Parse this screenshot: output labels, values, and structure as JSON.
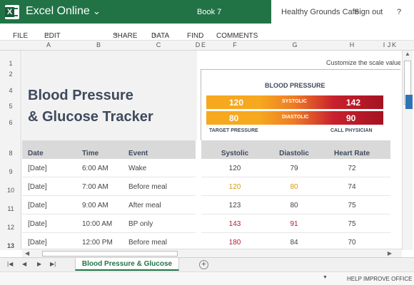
{
  "app": {
    "name": "Excel Online",
    "book": "Book 7",
    "user": "Healthy Grounds Cafe",
    "signout": "Sign out",
    "help": "?"
  },
  "menu": [
    {
      "label": "FILE",
      "caret": false
    },
    {
      "label": "EDIT WORKBOOK",
      "caret": true
    },
    {
      "label": "SHARE",
      "caret": true
    },
    {
      "label": "DATA",
      "caret": true
    },
    {
      "label": "FIND",
      "caret": false
    },
    {
      "label": "COMMENTS",
      "caret": false
    }
  ],
  "columns": [
    "A",
    "B",
    "C",
    "D",
    "E",
    "F",
    "G",
    "H",
    "I",
    "J",
    "K"
  ],
  "rows": [
    "1",
    "2",
    "4",
    "5",
    "6",
    "8",
    "9",
    "10",
    "11",
    "12",
    "13"
  ],
  "sheet": {
    "title_line1": "Blood Pressure",
    "title_line2": "& Glucose Tracker",
    "customize": "Customize the scale values",
    "bp_heading": "BLOOD PRESSURE",
    "scale": {
      "systolic_target": "120",
      "systolic_label": "SYSTOLIC",
      "systolic_call": "142",
      "diastolic_target": "80",
      "diastolic_label": "DIASTOLIC",
      "diastolic_call": "90",
      "target_label": "TARGET PRESSURE",
      "call_label": "CALL PHYSICIAN"
    },
    "headers": {
      "date": "Date",
      "time": "Time",
      "event": "Event",
      "systolic": "Systolic",
      "diastolic": "Diastolic",
      "heart_rate": "Heart Rate"
    },
    "data_rows": [
      {
        "date": "[Date]",
        "time": "6:00 AM",
        "event": "Wake",
        "systolic": "120",
        "diastolic": "79",
        "heart_rate": "72",
        "sys_color": "#444444",
        "dia_color": "#444444"
      },
      {
        "date": "[Date]",
        "time": "7:00 AM",
        "event": "Before meal",
        "systolic": "120",
        "diastolic": "80",
        "heart_rate": "74",
        "sys_color": "#d79a0e",
        "dia_color": "#d79a0e"
      },
      {
        "date": "[Date]",
        "time": "9:00 AM",
        "event": "After meal",
        "systolic": "123",
        "diastolic": "80",
        "heart_rate": "75",
        "sys_color": "#444444",
        "dia_color": "#444444"
      },
      {
        "date": "[Date]",
        "time": "10:00 AM",
        "event": "BP only",
        "systolic": "143",
        "diastolic": "91",
        "heart_rate": "75",
        "sys_color": "#b51c2b",
        "dia_color": "#b51c2b"
      },
      {
        "date": "[Date]",
        "time": "12:00 PM",
        "event": "Before meal",
        "systolic": "180",
        "diastolic": "84",
        "heart_rate": "70",
        "sys_color": "#b51c2b",
        "dia_color": "#444444"
      }
    ]
  },
  "tabs": {
    "active": "Blood Pressure & Glucose",
    "add": "+"
  },
  "status": {
    "help_improve": "HELP IMPROVE OFFICE"
  },
  "colors": {
    "brand_green": "#217346",
    "title_navy": "#3e4a5e",
    "warning_amber": "#d79a0e",
    "alert_red": "#b51c2b"
  }
}
